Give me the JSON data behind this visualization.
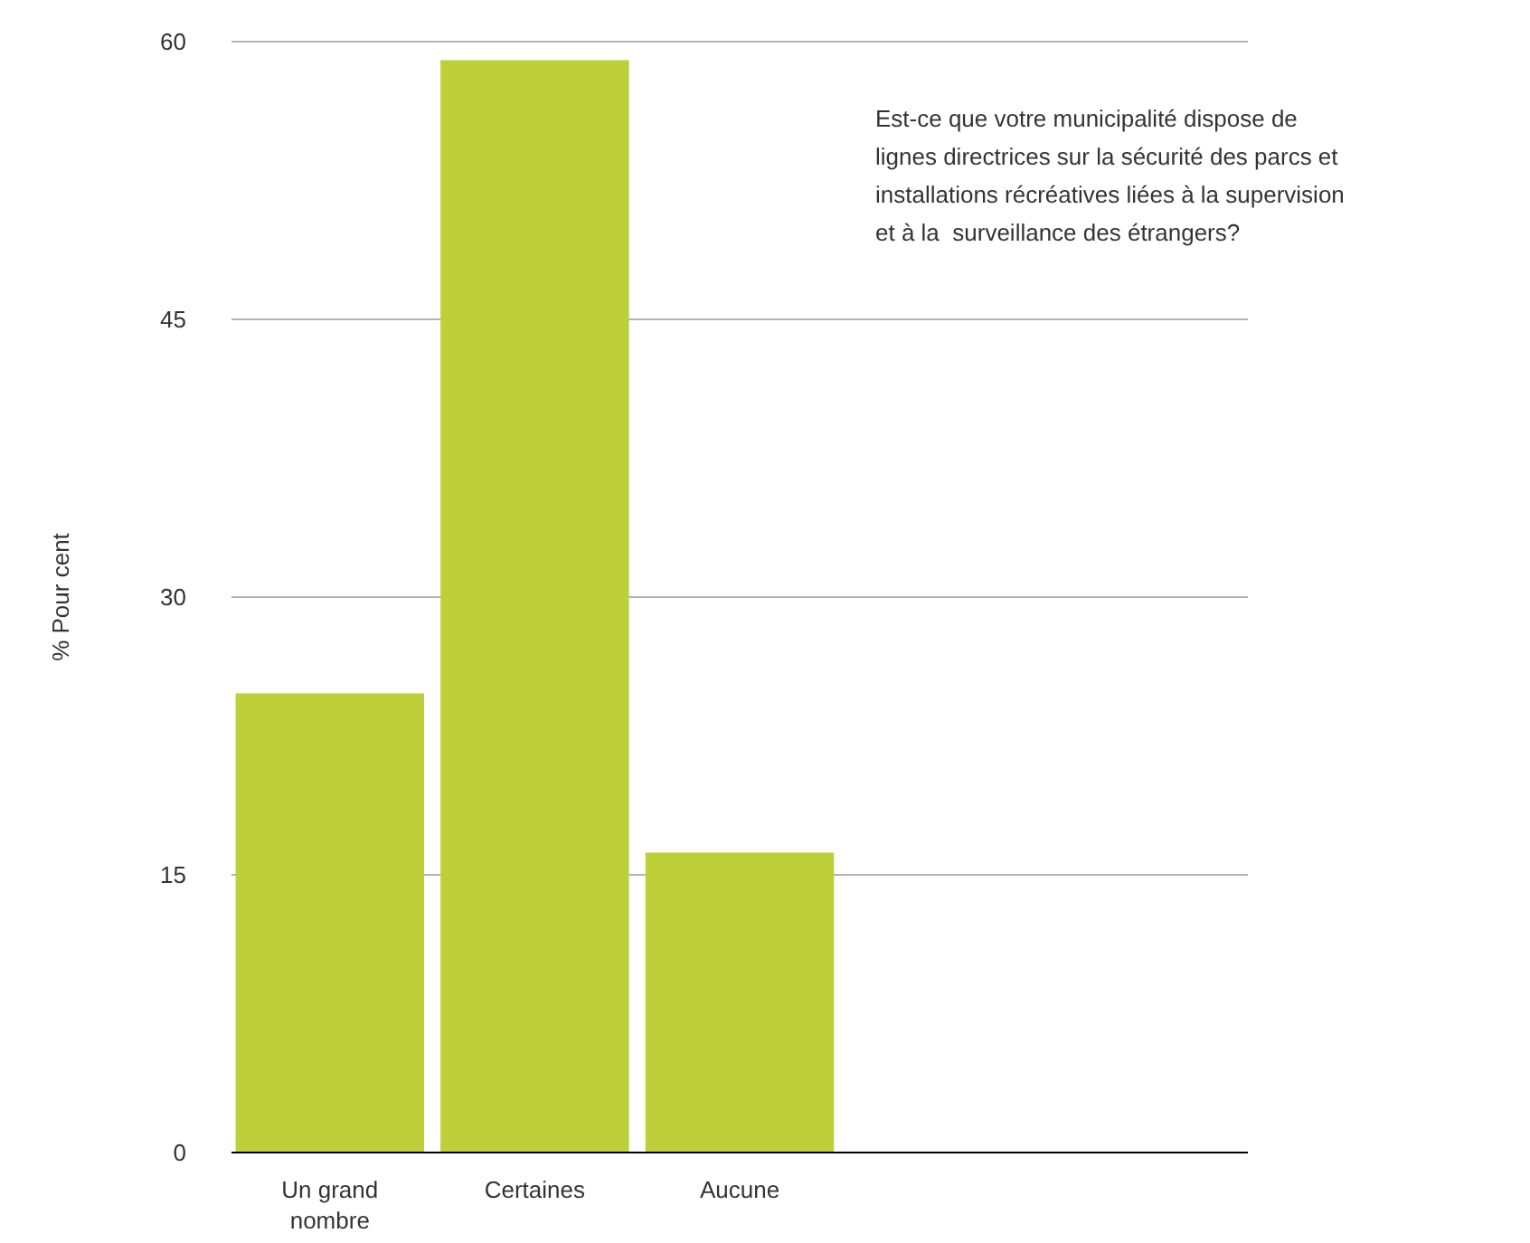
{
  "chart_data": {
    "type": "bar",
    "title": "Est-ce que votre municipalité dispose de\nlignes directrices sur la sécurité des parcs et\ninstallations récréatives liées à la supervision\net à la  surveillance des étrangers?",
    "ylabel": "% Pour cent",
    "categories": [
      "Un grand nombre",
      "Certaines",
      "Aucune",
      null,
      null
    ],
    "values": [
      24.8,
      59,
      16.2,
      null,
      null
    ],
    "color": "#bdd03a",
    "ylim": [
      0,
      60
    ],
    "yticks": [
      0,
      15,
      30,
      45,
      60
    ],
    "grid": "y"
  }
}
